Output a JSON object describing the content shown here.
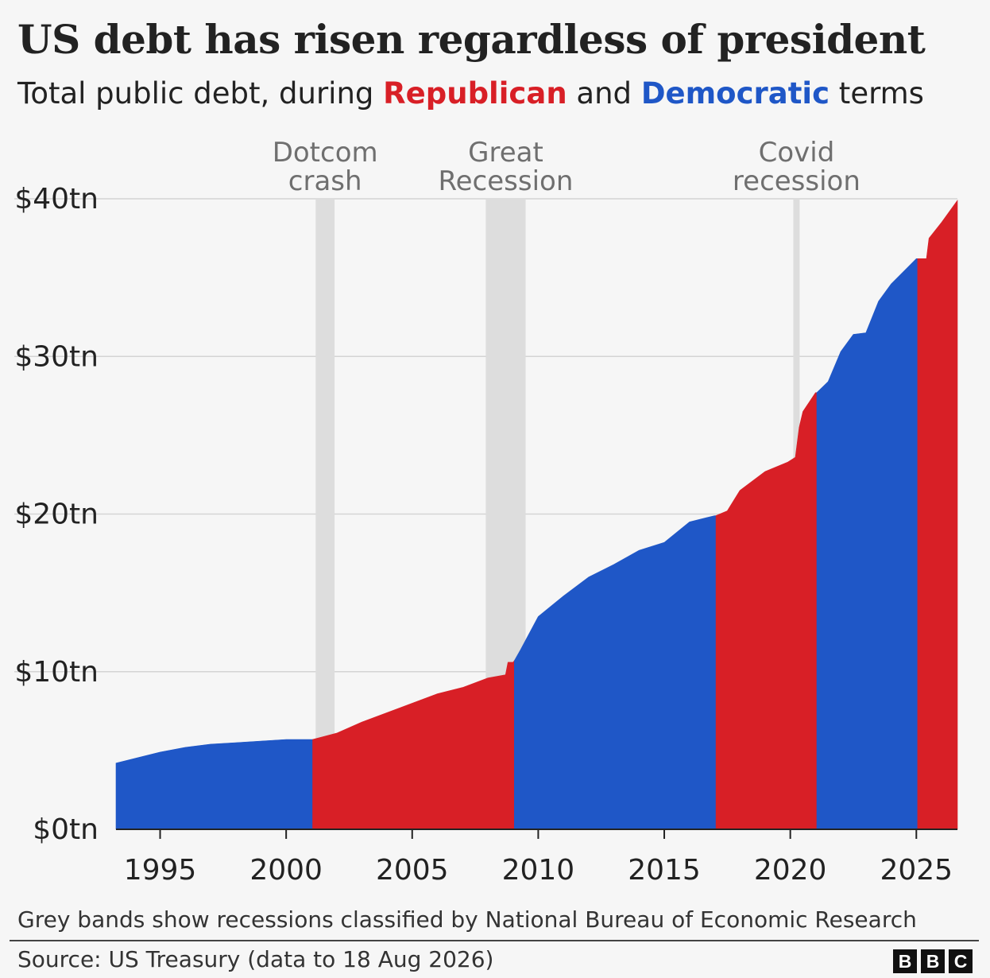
{
  "title": "US debt has risen regardless of president",
  "subtitle": {
    "prefix": "Total public debt, during ",
    "republican": "Republican",
    "middle": " and ",
    "democratic": "Democratic",
    "suffix": " terms"
  },
  "note": "Grey bands show recessions classified by National Bureau of Economic Research",
  "source": "Source: US Treasury (data to 18 Aug 2026)",
  "logo_letters": [
    "B",
    "B",
    "C"
  ],
  "colors": {
    "republican": "#d81f26",
    "democratic": "#1f57c7",
    "recession_band": "#dddddd",
    "grid": "#d4d4d4",
    "axis": "#222222",
    "annotation_text": "#6f6f6f"
  },
  "chart_data": {
    "type": "area",
    "title": "US debt has risen regardless of president",
    "subtitle": "Total public debt, during Republican and Democratic terms",
    "xlabel": "",
    "ylabel": "",
    "xlim": [
      1993.25,
      2026.63
    ],
    "ylim": [
      0,
      40
    ],
    "x_ticks": [
      1995,
      2000,
      2005,
      2010,
      2015,
      2020,
      2025
    ],
    "x_tick_labels": [
      "1995",
      "2000",
      "2005",
      "2010",
      "2015",
      "2020",
      "2025"
    ],
    "y_ticks": [
      0,
      10,
      20,
      30,
      40
    ],
    "y_tick_labels": [
      "$0tn",
      "$10tn",
      "$20tn",
      "$30tn",
      "$40tn"
    ],
    "grid": "horizontal",
    "legend": "in subtitle",
    "y_unit": "$ trillions",
    "terms": [
      {
        "party": "Democratic",
        "start": 1993.25,
        "end": 2001.05
      },
      {
        "party": "Republican",
        "start": 2001.05,
        "end": 2009.05
      },
      {
        "party": "Democratic",
        "start": 2009.05,
        "end": 2017.05
      },
      {
        "party": "Republican",
        "start": 2017.05,
        "end": 2021.05
      },
      {
        "party": "Democratic",
        "start": 2021.05,
        "end": 2025.05
      },
      {
        "party": "Republican",
        "start": 2025.05,
        "end": 2026.63
      }
    ],
    "recessions": [
      {
        "label": [
          "Dotcom",
          "crash"
        ],
        "start": 2001.17,
        "end": 2001.92
      },
      {
        "label": [
          "Great",
          "Recession"
        ],
        "start": 2007.92,
        "end": 2009.5
      },
      {
        "label": [
          "Covid",
          "recession"
        ],
        "start": 2020.12,
        "end": 2020.37
      }
    ],
    "x": [
      1993.25,
      1994.0,
      1995.0,
      1996.0,
      1997.0,
      1998.0,
      1999.0,
      2000.0,
      2001.0,
      2001.05,
      2002.0,
      2003.0,
      2004.0,
      2005.0,
      2006.0,
      2007.0,
      2008.0,
      2008.7,
      2008.8,
      2008.9,
      2009.0,
      2009.05,
      2009.3,
      2010.0,
      2011.0,
      2012.0,
      2013.0,
      2014.0,
      2015.0,
      2016.0,
      2017.0,
      2017.05,
      2017.5,
      2018.0,
      2019.0,
      2019.9,
      2020.2,
      2020.35,
      2020.5,
      2021.0,
      2021.05,
      2021.5,
      2022.0,
      2022.5,
      2023.0,
      2023.5,
      2024.0,
      2025.0,
      2025.05,
      2025.4,
      2025.5,
      2026.0,
      2026.63
    ],
    "values": [
      4.2,
      4.5,
      4.9,
      5.2,
      5.4,
      5.5,
      5.6,
      5.7,
      5.7,
      5.7,
      6.1,
      6.8,
      7.4,
      8.0,
      8.6,
      9.0,
      9.6,
      9.8,
      10.6,
      10.6,
      10.6,
      10.7,
      11.4,
      13.5,
      14.8,
      16.0,
      16.8,
      17.7,
      18.2,
      19.5,
      19.9,
      19.9,
      20.2,
      21.5,
      22.7,
      23.3,
      23.6,
      25.5,
      26.5,
      27.7,
      27.7,
      28.4,
      30.3,
      31.4,
      31.5,
      33.5,
      34.6,
      36.2,
      36.2,
      36.2,
      37.5,
      38.5,
      39.9
    ]
  }
}
